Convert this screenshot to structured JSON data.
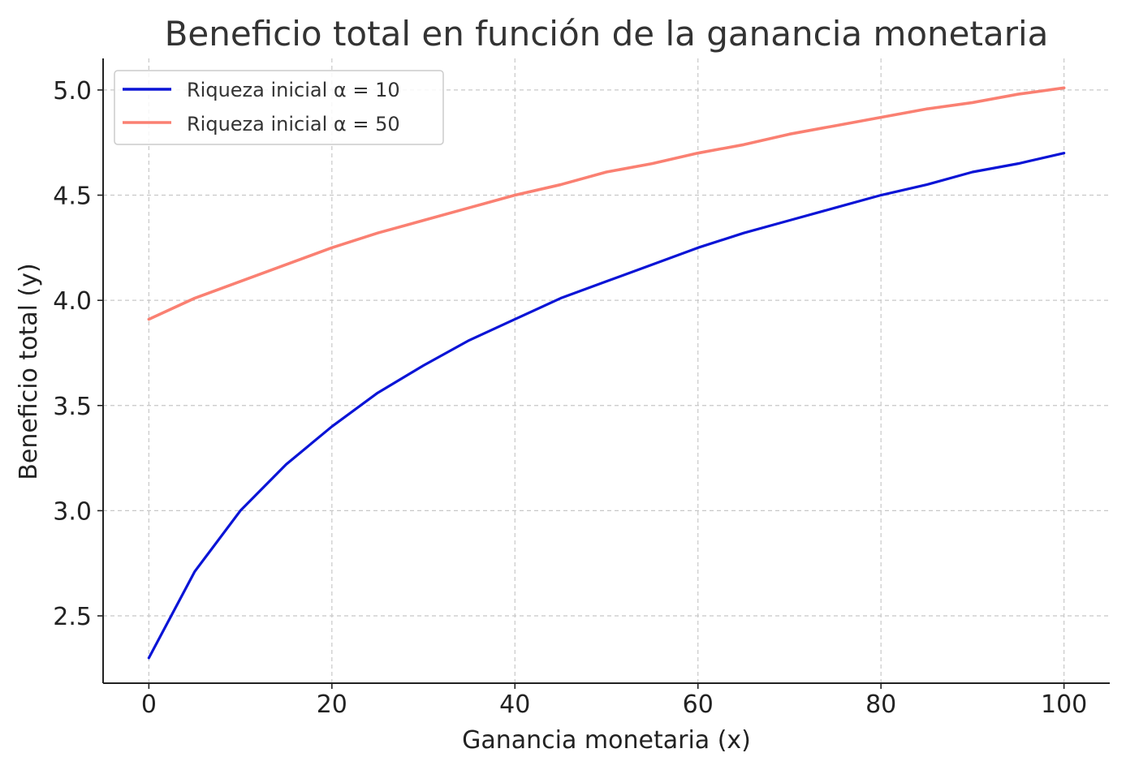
{
  "chart_data": {
    "type": "line",
    "title": "Beneficio total en función de la ganancia monetaria",
    "xlabel": "Ganancia monetaria (x)",
    "ylabel": "Beneficio total (y)",
    "xlim": [
      -5,
      105
    ],
    "ylim": [
      2.18,
      5.15
    ],
    "xticks": [
      0,
      20,
      40,
      60,
      80,
      100
    ],
    "xtick_labels": [
      "0",
      "20",
      "40",
      "60",
      "80",
      "100"
    ],
    "yticks": [
      2.5,
      3.0,
      3.5,
      4.0,
      4.5,
      5.0
    ],
    "ytick_labels": [
      "2.5",
      "3.0",
      "3.5",
      "4.0",
      "4.5",
      "5.0"
    ],
    "grid": true,
    "legend_position": "top-left",
    "series": [
      {
        "name": "Riqueza inicial α = 10",
        "color": "#0a14d6",
        "x": [
          0,
          5,
          10,
          15,
          20,
          25,
          30,
          35,
          40,
          45,
          50,
          55,
          60,
          65,
          70,
          75,
          80,
          85,
          90,
          95,
          100
        ],
        "y": [
          2.3,
          2.71,
          3.0,
          3.22,
          3.4,
          3.56,
          3.69,
          3.81,
          3.91,
          4.01,
          4.09,
          4.17,
          4.25,
          4.32,
          4.38,
          4.44,
          4.5,
          4.55,
          4.61,
          4.65,
          4.7
        ]
      },
      {
        "name": "Riqueza inicial α = 50",
        "color": "#fa8072",
        "x": [
          0,
          5,
          10,
          15,
          20,
          25,
          30,
          35,
          40,
          45,
          50,
          55,
          60,
          65,
          70,
          75,
          80,
          85,
          90,
          95,
          100
        ],
        "y": [
          3.91,
          4.01,
          4.09,
          4.17,
          4.25,
          4.32,
          4.38,
          4.44,
          4.5,
          4.55,
          4.61,
          4.65,
          4.7,
          4.74,
          4.79,
          4.83,
          4.87,
          4.91,
          4.94,
          4.98,
          5.01
        ]
      }
    ]
  }
}
